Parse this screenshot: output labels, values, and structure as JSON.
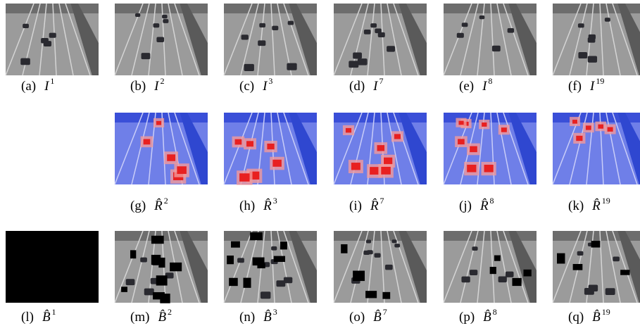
{
  "rows": [
    {
      "panels": [
        {
          "label": "(a)",
          "symbol": "I",
          "sup": "1"
        },
        {
          "label": "(b)",
          "symbol": "I",
          "sup": "2"
        },
        {
          "label": "(c)",
          "symbol": "I",
          "sup": "3"
        },
        {
          "label": "(d)",
          "symbol": "I",
          "sup": "7"
        },
        {
          "label": "(e)",
          "symbol": "I",
          "sup": "8"
        },
        {
          "label": "(f)",
          "symbol": "I",
          "sup": "19"
        }
      ]
    },
    {
      "panels": [
        {
          "label": "(g)",
          "symbol": "R̂",
          "sup": "2"
        },
        {
          "label": "(h)",
          "symbol": "R̂",
          "sup": "3"
        },
        {
          "label": "(i)",
          "symbol": "R̂",
          "sup": "7"
        },
        {
          "label": "(j)",
          "symbol": "R̂",
          "sup": "8"
        },
        {
          "label": "(k)",
          "symbol": "R̂",
          "sup": "19"
        }
      ]
    },
    {
      "panels": [
        {
          "label": "(l)",
          "symbol": "B̂",
          "sup": "1"
        },
        {
          "label": "(m)",
          "symbol": "B̂",
          "sup": "2"
        },
        {
          "label": "(n)",
          "symbol": "B̂",
          "sup": "3"
        },
        {
          "label": "(o)",
          "symbol": "B̂",
          "sup": "7"
        },
        {
          "label": "(p)",
          "symbol": "B̂",
          "sup": "8"
        },
        {
          "label": "(q)",
          "symbol": "B̂",
          "sup": "19"
        }
      ]
    }
  ]
}
